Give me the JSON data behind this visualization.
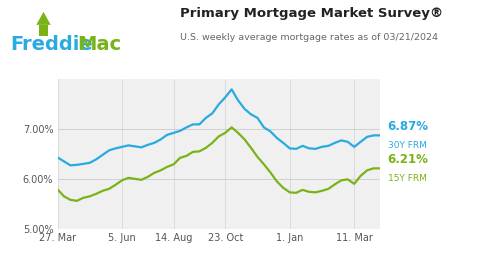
{
  "title": "Primary Mortgage Market Survey®",
  "subtitle": "U.S. weekly average mortgage rates as of 03/21/2024",
  "background_color": "#ffffff",
  "plot_bg_color": "#f0f0f0",
  "blue_color": "#29aae1",
  "green_color": "#7ab317",
  "freddie_blue": "#29aae1",
  "freddie_green": "#7ab317",
  "ylim": [
    5.0,
    8.0
  ],
  "yticks": [
    5.0,
    6.0,
    7.0
  ],
  "ytick_labels": [
    "5.00%",
    "6.00%",
    "7.00%"
  ],
  "xtick_labels": [
    "27. Mar",
    "5. Jun",
    "14. Aug",
    "23. Oct",
    "1. Jan",
    "11. Mar"
  ],
  "xtick_pos": [
    0,
    10,
    18,
    26,
    36,
    46
  ],
  "label_30y": "6.87%",
  "label_30y_sub": "30Y FRM",
  "label_15y": "6.21%",
  "label_15y_sub": "15Y FRM",
  "x_data": [
    0,
    1,
    2,
    3,
    4,
    5,
    6,
    7,
    8,
    9,
    10,
    11,
    12,
    13,
    14,
    15,
    16,
    17,
    18,
    19,
    20,
    21,
    22,
    23,
    24,
    25,
    26,
    27,
    28,
    29,
    30,
    31,
    32,
    33,
    34,
    35,
    36,
    37,
    38,
    39,
    40,
    41,
    42,
    43,
    44,
    45,
    46,
    47,
    48,
    49,
    50
  ],
  "y_30y": [
    6.43,
    6.35,
    6.27,
    6.28,
    6.3,
    6.32,
    6.39,
    6.48,
    6.57,
    6.61,
    6.64,
    6.67,
    6.65,
    6.63,
    6.68,
    6.72,
    6.79,
    6.88,
    6.92,
    6.96,
    7.03,
    7.09,
    7.09,
    7.22,
    7.31,
    7.49,
    7.63,
    7.79,
    7.57,
    7.4,
    7.29,
    7.22,
    7.03,
    6.95,
    6.82,
    6.72,
    6.61,
    6.6,
    6.66,
    6.61,
    6.6,
    6.64,
    6.66,
    6.72,
    6.77,
    6.74,
    6.64,
    6.74,
    6.84,
    6.87,
    6.87
  ],
  "y_15y": [
    5.79,
    5.65,
    5.58,
    5.56,
    5.62,
    5.65,
    5.7,
    5.76,
    5.8,
    5.88,
    5.97,
    6.02,
    6.0,
    5.98,
    6.04,
    6.12,
    6.17,
    6.24,
    6.29,
    6.42,
    6.46,
    6.54,
    6.55,
    6.62,
    6.72,
    6.85,
    6.92,
    7.03,
    6.92,
    6.79,
    6.62,
    6.44,
    6.29,
    6.13,
    5.95,
    5.82,
    5.73,
    5.72,
    5.78,
    5.74,
    5.73,
    5.76,
    5.8,
    5.89,
    5.97,
    5.99,
    5.9,
    6.06,
    6.17,
    6.21,
    6.21
  ]
}
